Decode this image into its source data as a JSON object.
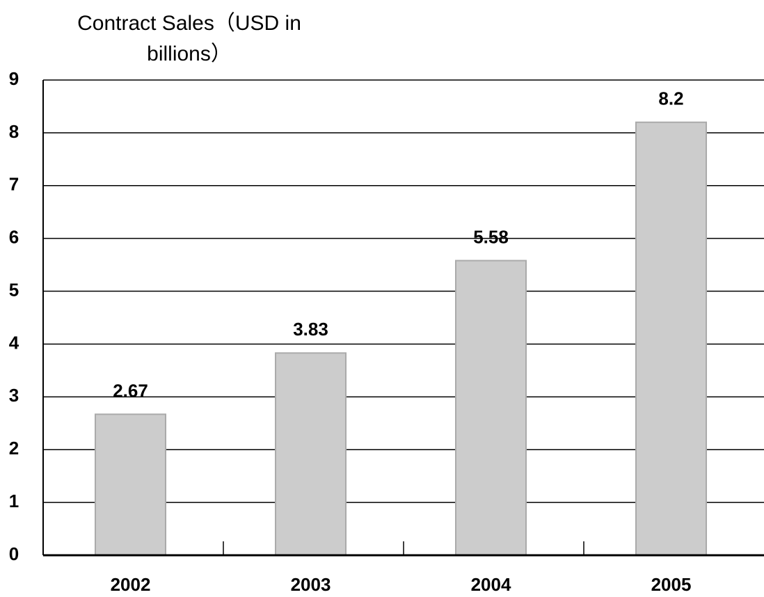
{
  "chart_data": {
    "type": "bar",
    "title": "Contract Sales（USD in billions）",
    "categories": [
      "2002",
      "2003",
      "2004",
      "2005"
    ],
    "values": [
      2.67,
      3.83,
      5.58,
      8.2
    ],
    "color": "#cccccc",
    "ylim": [
      0,
      9
    ],
    "yticks": [
      0,
      1,
      2,
      3,
      4,
      5,
      6,
      7,
      8,
      9
    ],
    "grid": true
  }
}
